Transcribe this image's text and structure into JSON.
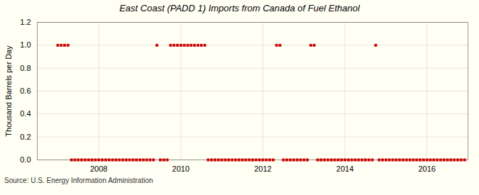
{
  "chart_data": {
    "type": "scatter",
    "title": "East Coast (PADD 1) Imports from Canada of Fuel Ethanol",
    "ylabel": "Thousand Barrels per Day",
    "annotations": [
      "Source: U.S. Energy Information Administration"
    ],
    "color": "#cc0000",
    "marker": "square",
    "grid": true,
    "xlim": [
      2006.5,
      2017.0
    ],
    "xticks": [
      2008,
      2010,
      2012,
      2014,
      2016
    ],
    "ylim": [
      0,
      1.2
    ],
    "yticks": [
      {
        "value": 0.0,
        "label": "0.0"
      },
      {
        "value": 0.2,
        "label": "0.2"
      },
      {
        "value": 0.4,
        "label": "0.4"
      },
      {
        "value": 0.6,
        "label": "0.6"
      },
      {
        "value": 0.8,
        "label": "0.8"
      },
      {
        "value": 1.0,
        "label": "1.0"
      },
      {
        "value": 1.2,
        "label": "1.2"
      }
    ],
    "x": [
      2007,
      2007.083333,
      2007.166667,
      2007.25,
      2007.333333,
      2007.416667,
      2007.5,
      2007.583333,
      2007.666667,
      2007.75,
      2007.833333,
      2007.916667,
      2008,
      2008.083333,
      2008.166667,
      2008.25,
      2008.333333,
      2008.416667,
      2008.5,
      2008.583333,
      2008.666667,
      2008.75,
      2008.833333,
      2008.916667,
      2009,
      2009.083333,
      2009.166667,
      2009.25,
      2009.333333,
      2009.416667,
      2009.5,
      2009.583333,
      2009.666667,
      2009.75,
      2009.833333,
      2009.916667,
      2010,
      2010.083333,
      2010.166667,
      2010.25,
      2010.333333,
      2010.416667,
      2010.5,
      2010.583333,
      2010.666667,
      2010.75,
      2010.833333,
      2010.916667,
      2011,
      2011.083333,
      2011.166667,
      2011.25,
      2011.333333,
      2011.416667,
      2011.5,
      2011.583333,
      2011.666667,
      2011.75,
      2011.833333,
      2011.916667,
      2012,
      2012.083333,
      2012.166667,
      2012.25,
      2012.333333,
      2012.416667,
      2012.5,
      2012.583333,
      2012.666667,
      2012.75,
      2012.833333,
      2012.916667,
      2013,
      2013.083333,
      2013.166667,
      2013.25,
      2013.333333,
      2013.416667,
      2013.5,
      2013.583333,
      2013.666667,
      2013.75,
      2013.833333,
      2013.916667,
      2014,
      2014.083333,
      2014.166667,
      2014.25,
      2014.333333,
      2014.416667,
      2014.5,
      2014.583333,
      2014.666667,
      2014.75,
      2014.833333,
      2014.916667,
      2015,
      2015.083333,
      2015.166667,
      2015.25,
      2015.333333,
      2015.416667,
      2015.5,
      2015.583333,
      2015.666667,
      2015.75,
      2015.833333,
      2015.916667,
      2016,
      2016.083333,
      2016.166667,
      2016.25,
      2016.333333,
      2016.416667,
      2016.5,
      2016.583333,
      2016.666667,
      2016.75,
      2016.833333,
      2016.916667
    ],
    "values": [
      1,
      1,
      1,
      1,
      0,
      0,
      0,
      0,
      0,
      0,
      0,
      0,
      0,
      0,
      0,
      0,
      0,
      0,
      0,
      0,
      0,
      0,
      0,
      0,
      0,
      0,
      0,
      0,
      0,
      1,
      0,
      0,
      0,
      1,
      1,
      1,
      1,
      1,
      1,
      1,
      1,
      1,
      1,
      1,
      0,
      0,
      0,
      0,
      0,
      0,
      0,
      0,
      0,
      0,
      0,
      0,
      0,
      0,
      0,
      0,
      0,
      0,
      0,
      0,
      1,
      1,
      0,
      0,
      0,
      0,
      0,
      0,
      0,
      0,
      1,
      1,
      0,
      0,
      0,
      0,
      0,
      0,
      0,
      0,
      0,
      0,
      0,
      0,
      0,
      0,
      0,
      0,
      0,
      1,
      0,
      0,
      0,
      0,
      0,
      0,
      0,
      0,
      0,
      0,
      0,
      0,
      0,
      0,
      0,
      0,
      0,
      0,
      0,
      0,
      0,
      0,
      0,
      0,
      0,
      0
    ]
  }
}
